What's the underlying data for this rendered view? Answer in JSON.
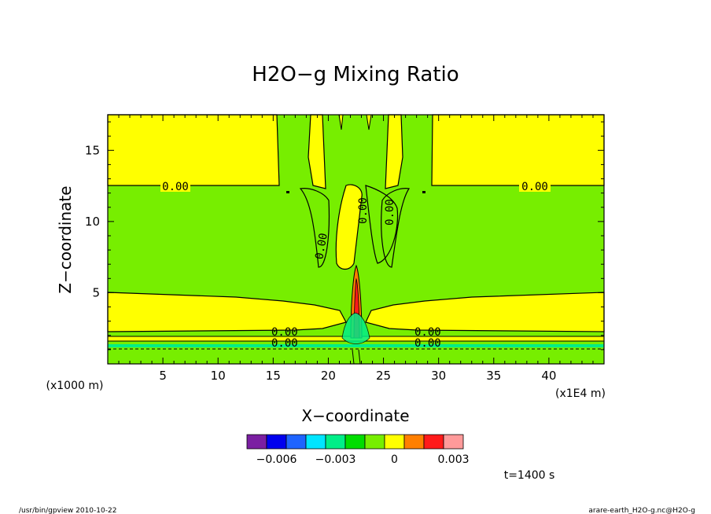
{
  "title": "H2O−g Mixing Ratio",
  "footer": {
    "left": "/usr/bin/gpview  2010-10-22",
    "right": "arare-earth_H2O-g.nc@H2O-g"
  },
  "time_label": "t=1400 s",
  "contour_labels": [
    "0.00",
    "0.00",
    "0.00",
    "0.00",
    "0.00",
    "0.00",
    "0.00",
    "0.00",
    "0.00",
    "0.00"
  ],
  "chart_data": {
    "type": "heatmap",
    "title": "H2O−g Mixing Ratio",
    "xlabel": "X−coordinate",
    "ylabel": "Z−coordinate",
    "x_unit": "(x1E4 m)",
    "y_unit": "(x1000 m)",
    "xlim": [
      0,
      45
    ],
    "ylim": [
      0,
      17.5
    ],
    "x_ticks": [
      5,
      10,
      15,
      20,
      25,
      30,
      35,
      40
    ],
    "y_ticks": [
      5,
      10,
      15
    ],
    "colorbar": {
      "colors": [
        "#7b1fa2",
        "#0000ee",
        "#1e64ff",
        "#00e5ff",
        "#00ee88",
        "#00dd00",
        "#77ee00",
        "#ffff00",
        "#ff7f00",
        "#ff1a1a",
        "#ff9a9a"
      ],
      "tick_labels": [
        "−0.006",
        "−0.003",
        "0",
        "0.003"
      ],
      "tick_values": [
        -0.006,
        -0.003,
        0,
        0.003
      ],
      "range": [
        -0.0075,
        0.0035
      ]
    },
    "time": "t=1400 s"
  }
}
